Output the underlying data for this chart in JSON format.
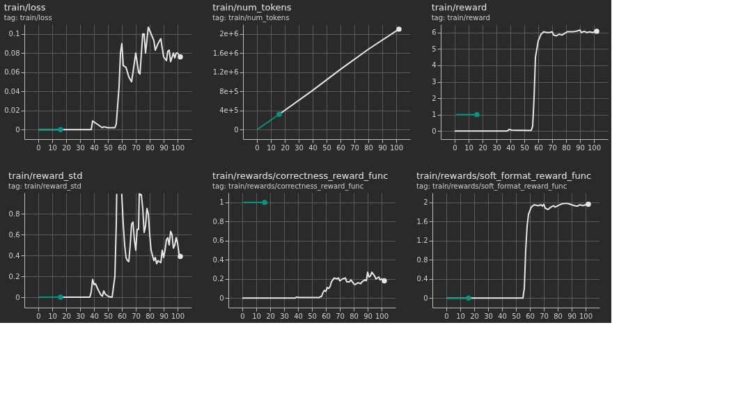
{
  "chart_data": [
    {
      "type": "line",
      "title": "train/loss",
      "subtitle": "tag: train/loss",
      "xlim": [
        -10,
        110
      ],
      "xticks": [
        0,
        10,
        20,
        30,
        40,
        50,
        60,
        70,
        80,
        90,
        100
      ],
      "ylim": [
        -0.01,
        0.11
      ],
      "yticks": [
        0,
        0.02,
        0.04,
        0.06,
        0.08,
        0.1
      ],
      "grid": true,
      "series": [
        {
          "color": "#009688",
          "x": [
            0,
            16
          ],
          "values": [
            0,
            0
          ]
        },
        {
          "color": "#e8e8e8",
          "x": [
            0,
            38,
            39,
            42,
            46,
            47,
            50,
            55,
            56,
            58,
            59,
            60,
            61,
            63,
            65,
            67,
            70,
            71,
            72,
            73,
            75,
            76,
            77,
            79,
            81,
            83,
            84,
            86,
            88,
            89,
            90,
            92,
            93,
            94,
            95,
            97,
            98,
            99,
            100,
            102
          ],
          "values": [
            0,
            0,
            0.009,
            0.006,
            0.002,
            0.003,
            0.002,
            0.002,
            0.006,
            0.045,
            0.08,
            0.09,
            0.067,
            0.065,
            0.055,
            0.05,
            0.08,
            0.07,
            0.06,
            0.058,
            0.1,
            0.1,
            0.08,
            0.107,
            0.1,
            0.093,
            0.083,
            0.09,
            0.095,
            0.085,
            0.076,
            0.072,
            0.082,
            0.083,
            0.071,
            0.08,
            0.075,
            0.08,
            0.08,
            0.076
          ]
        }
      ]
    },
    {
      "type": "line",
      "title": "train/num_tokens",
      "subtitle": "tag: train/num_tokens",
      "xlim": [
        -10,
        110
      ],
      "xticks": [
        0,
        10,
        20,
        30,
        40,
        50,
        60,
        70,
        80,
        90,
        100
      ],
      "ylim": [
        -200000,
        2200000
      ],
      "yticks": [
        0,
        {
          "value": 400000,
          "label": "4e+5"
        },
        {
          "value": 800000,
          "label": "8e+5"
        },
        {
          "value": 1200000,
          "label": "1.2e+6"
        },
        {
          "value": 1600000,
          "label": "1.6e+6"
        },
        {
          "value": 2000000,
          "label": "2e+6"
        }
      ],
      "grid": true,
      "series": [
        {
          "color": "#009688",
          "x": [
            0,
            8,
            16
          ],
          "values": [
            0,
            160000,
            320000
          ]
        },
        {
          "color": "#e8e8e8",
          "x": [
            16,
            40,
            60,
            80,
            102
          ],
          "values": [
            320000,
            820000,
            1260000,
            1680000,
            2100000
          ]
        }
      ]
    },
    {
      "type": "line",
      "title": "train/reward",
      "subtitle": "tag: train/reward",
      "xlim": [
        -10,
        110
      ],
      "xticks": [
        0,
        10,
        20,
        30,
        40,
        50,
        60,
        70,
        80,
        90,
        100
      ],
      "ylim": [
        -0.5,
        6.5
      ],
      "yticks": [
        0,
        1,
        2,
        3,
        4,
        5,
        6
      ],
      "grid": true,
      "series": [
        {
          "color": "#009688",
          "x": [
            1,
            16
          ],
          "values": [
            1,
            1
          ]
        },
        {
          "color": "#e8e8e8",
          "x": [
            0,
            38,
            39,
            41,
            55,
            56,
            57,
            58,
            60,
            62,
            64,
            66,
            68,
            70,
            71,
            73,
            75,
            77,
            79,
            81,
            85,
            88,
            90,
            91,
            93,
            95,
            97,
            99,
            102
          ],
          "values": [
            0,
            0,
            0.1,
            0.05,
            0.03,
            0.3,
            2,
            4.5,
            5.5,
            5.9,
            6.05,
            6,
            6,
            6.05,
            5.85,
            5.8,
            5.9,
            5.85,
            5.95,
            6.05,
            6.05,
            6.1,
            6.15,
            6,
            6.08,
            6,
            6.05,
            6,
            6.08
          ]
        }
      ]
    },
    {
      "type": "line",
      "title": "train/reward_std",
      "subtitle": "tag: train/reward_std",
      "xlim": [
        -10,
        110
      ],
      "xticks": [
        0,
        10,
        20,
        30,
        40,
        50,
        60,
        70,
        80,
        90,
        100
      ],
      "ylim": [
        -0.1,
        1
      ],
      "yticks": [
        0,
        0.2,
        0.4,
        0.6,
        0.8
      ],
      "grid": true,
      "series": [
        {
          "color": "#009688",
          "x": [
            0,
            16
          ],
          "values": [
            0,
            0
          ]
        },
        {
          "color": "#e8e8e8",
          "x": [
            0,
            37,
            38,
            39,
            40,
            41,
            43,
            45,
            46,
            47,
            48,
            50,
            52,
            53,
            55,
            56,
            56.3,
            58,
            59.9,
            61,
            62,
            63,
            64,
            65,
            66,
            67,
            68,
            69,
            70,
            71,
            72,
            72.5,
            74,
            75,
            76,
            77,
            78,
            79,
            80,
            81,
            83,
            84,
            85,
            86,
            87,
            88,
            89,
            90,
            91,
            92,
            93,
            94,
            95,
            96,
            97,
            98,
            99,
            100,
            101,
            102
          ],
          "values": [
            0,
            0,
            0.05,
            0.17,
            0.12,
            0.13,
            0.07,
            0.02,
            0.01,
            0.06,
            0.03,
            0.01,
            0,
            0,
            0.2,
            0.7,
            0.99,
            null,
            0.99,
            0.7,
            0.5,
            0.38,
            0.35,
            0.34,
            0.5,
            0.7,
            0.72,
            0.55,
            0.45,
            0.65,
            0.65,
            0.99,
            0.98,
            0.85,
            0.62,
            0.68,
            0.85,
            0.8,
            0.6,
            0.45,
            0.35,
            0.38,
            0.32,
            0.35,
            0.34,
            0.33,
            0.45,
            0.38,
            0.45,
            0.55,
            0.57,
            0.5,
            0.63,
            0.6,
            0.47,
            0.5,
            0.57,
            0.52,
            0.42,
            0.39
          ]
        }
      ]
    },
    {
      "type": "line",
      "title": "train/rewards/correctness_reward_func",
      "subtitle": "tag: train/rewards/correctness_reward_func",
      "xlim": [
        -10,
        110
      ],
      "xticks": [
        0,
        10,
        20,
        30,
        40,
        50,
        60,
        70,
        80,
        90,
        100
      ],
      "ylim": [
        -0.1,
        1.1
      ],
      "yticks": [
        0,
        0.2,
        0.4,
        0.6,
        0.8,
        1
      ],
      "grid": true,
      "series": [
        {
          "color": "#009688",
          "x": [
            1,
            16
          ],
          "values": [
            1,
            1
          ]
        },
        {
          "color": "#e8e8e8",
          "x": [
            0,
            38,
            39,
            41,
            55,
            57,
            58,
            59,
            60,
            61,
            62,
            63,
            64,
            66,
            68,
            69,
            70,
            72,
            74,
            75,
            77,
            78,
            80,
            81,
            83,
            85,
            86,
            88,
            89,
            90,
            91,
            92,
            93,
            95,
            96,
            98,
            99,
            100,
            102
          ],
          "values": [
            0,
            0,
            0.01,
            0.005,
            0.005,
            0.02,
            0.06,
            0.08,
            0.07,
            0.11,
            0.1,
            0.12,
            0.17,
            0.21,
            0.2,
            0.21,
            0.18,
            0.2,
            0.21,
            0.17,
            0.17,
            0.19,
            0.15,
            0.14,
            0.16,
            0.15,
            0.17,
            0.19,
            0.18,
            0.27,
            0.22,
            0.23,
            0.27,
            0.23,
            0.2,
            0.22,
            0.19,
            0.2,
            0.18
          ]
        }
      ]
    },
    {
      "type": "line",
      "title": "train/rewards/soft_format_reward_func",
      "subtitle": "tag: train/rewards/soft_format_reward_func",
      "xlim": [
        -10,
        110
      ],
      "xticks": [
        0,
        10,
        20,
        30,
        40,
        50,
        60,
        70,
        80,
        90,
        100
      ],
      "ylim": [
        -0.2,
        2.2
      ],
      "yticks": [
        0,
        0.4,
        0.8,
        1.2,
        1.6,
        2
      ],
      "grid": true,
      "series": [
        {
          "color": "#009688",
          "x": [
            0,
            16
          ],
          "values": [
            0,
            0
          ]
        },
        {
          "color": "#e8e8e8",
          "x": [
            0,
            55,
            56,
            57,
            58,
            59,
            61,
            63,
            66,
            68,
            69,
            70,
            71,
            73,
            75,
            77,
            78,
            80,
            83,
            86,
            88,
            90,
            92,
            94,
            96,
            98,
            100,
            102
          ],
          "values": [
            0,
            0,
            0.2,
            1,
            1.5,
            1.75,
            1.9,
            1.95,
            1.93,
            1.95,
            1.92,
            1.96,
            1.88,
            1.85,
            1.9,
            1.93,
            1.9,
            1.93,
            1.97,
            1.98,
            1.97,
            1.95,
            1.93,
            1.92,
            1.95,
            1.93,
            1.95,
            1.96
          ]
        }
      ]
    }
  ]
}
